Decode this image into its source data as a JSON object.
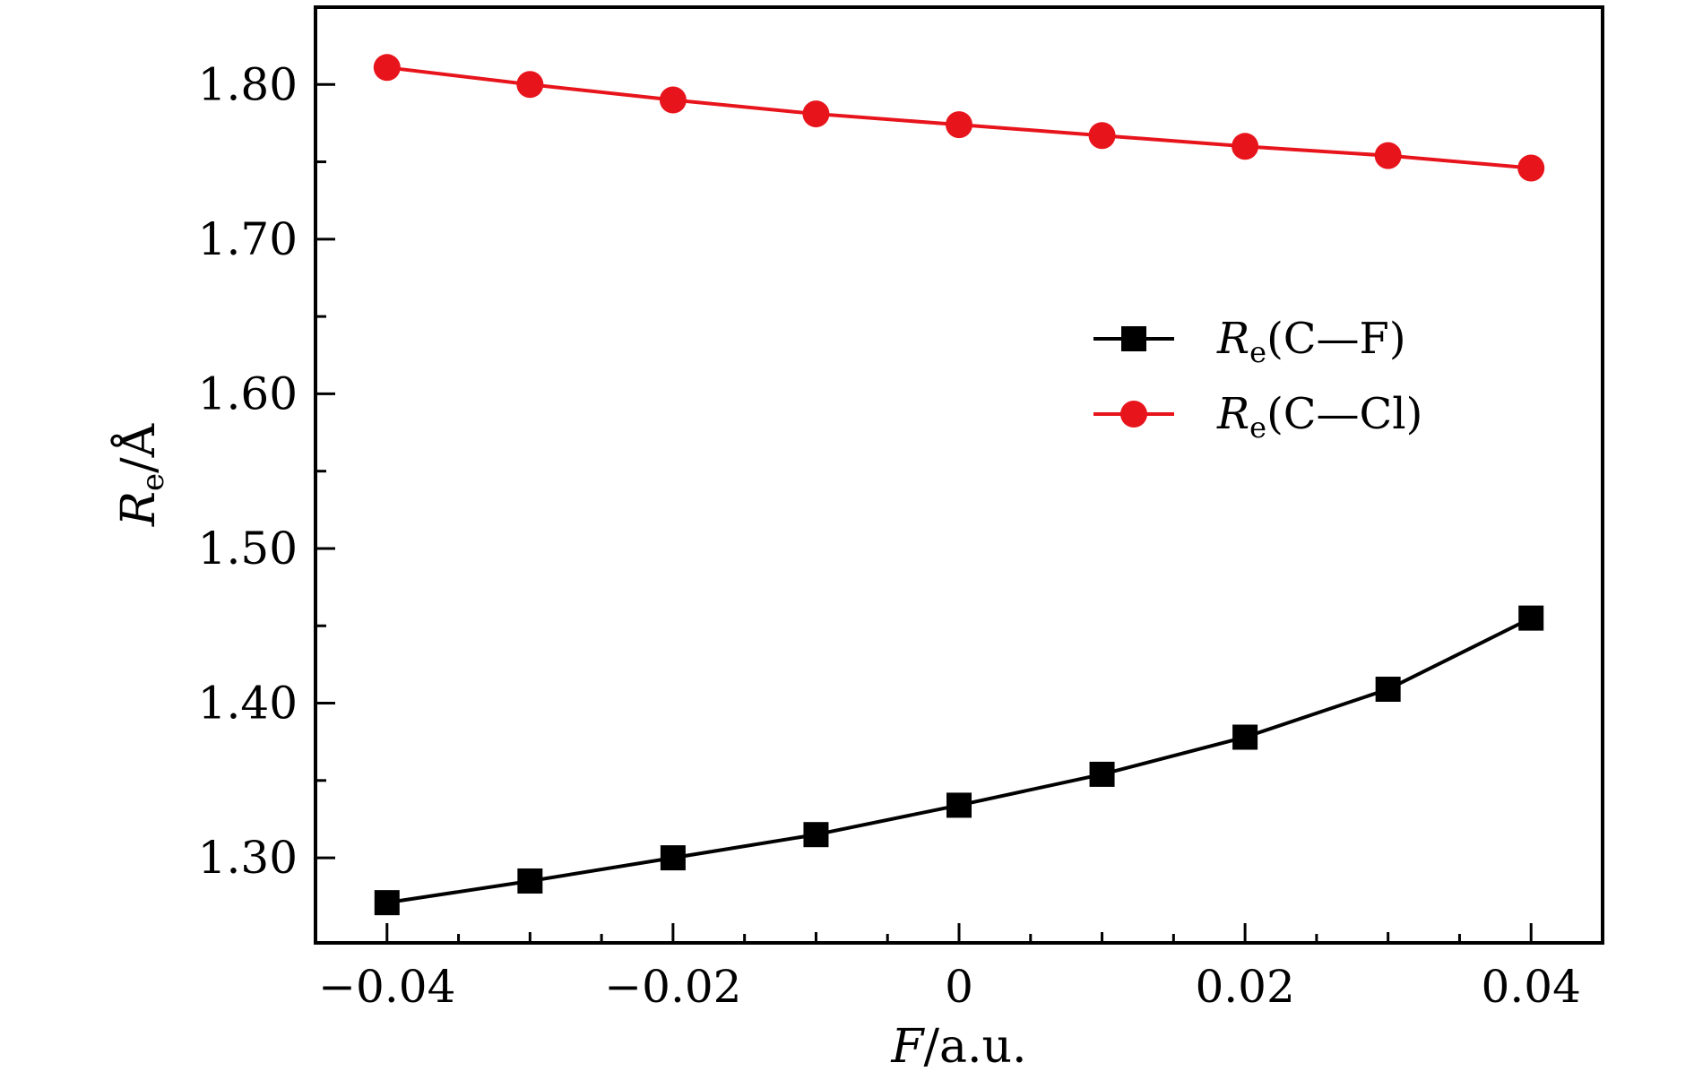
{
  "chart_data": {
    "type": "line",
    "xlabel": {
      "var": "F",
      "unit": "/a.u."
    },
    "ylabel": {
      "var": "R",
      "sub": "e",
      "unit": "/Å"
    },
    "xlim": [
      -0.045,
      0.045
    ],
    "ylim": [
      1.245,
      1.85
    ],
    "xticks": [
      -0.04,
      -0.02,
      0,
      0.02,
      0.04
    ],
    "xtick_labels": [
      "−0.04",
      "−0.02",
      "0",
      "0.02",
      "0.04"
    ],
    "xticks_minor": [
      -0.03,
      -0.01,
      0.01,
      0.03
    ],
    "yticks": [
      1.3,
      1.4,
      1.5,
      1.6,
      1.7,
      1.8
    ],
    "ytick_labels": [
      "1.30",
      "1.40",
      "1.50",
      "1.60",
      "1.70",
      "1.80"
    ],
    "x": [
      -0.04,
      -0.03,
      -0.02,
      -0.01,
      0,
      0.01,
      0.02,
      0.03,
      0.04
    ],
    "series": [
      {
        "name": "C—F",
        "label_var": "R",
        "label_sub": "e",
        "label_paren": "(C—F)",
        "color": "#000000",
        "marker": "square",
        "values": [
          1.271,
          1.285,
          1.3,
          1.315,
          1.334,
          1.354,
          1.378,
          1.409,
          1.455
        ]
      },
      {
        "name": "C—Cl",
        "label_var": "R",
        "label_sub": "e",
        "label_paren": "(C—Cl)",
        "color": "#e8141c",
        "marker": "circle",
        "values": [
          1.811,
          1.8,
          1.79,
          1.781,
          1.774,
          1.767,
          1.76,
          1.754,
          1.746
        ]
      }
    ],
    "legend": "center-right",
    "grid": false
  }
}
